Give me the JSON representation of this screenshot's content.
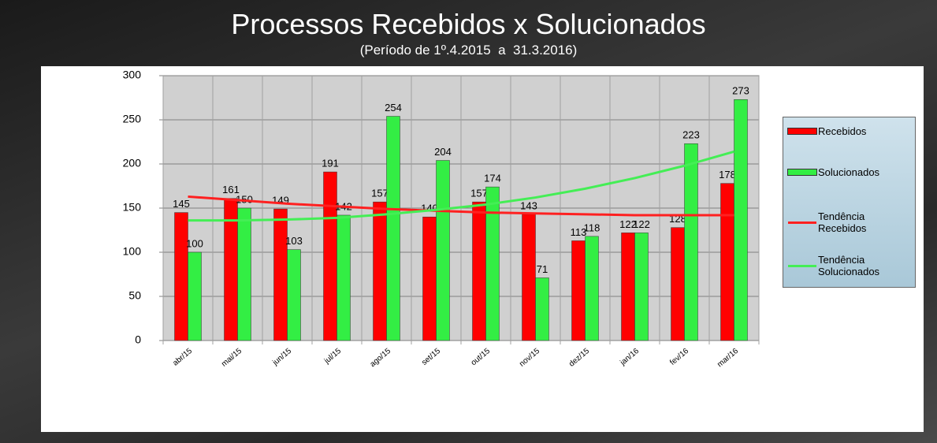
{
  "chart_data": {
    "type": "bar",
    "title": "Processos Recebidos x Solucionados",
    "subtitle": "(Período de 1º.4.2015  a  31.3.2016)",
    "categories": [
      "abr/15",
      "mai/15",
      "jun/15",
      "jul/15",
      "ago/15",
      "set/15",
      "out/15",
      "nov/15",
      "dez/15",
      "jan/16",
      "fev/16",
      "mar/16"
    ],
    "series": [
      {
        "name": "Recebidos",
        "color": "#ff0000",
        "type": "bar",
        "values": [
          145,
          161,
          149,
          191,
          157,
          140,
          157,
          143,
          113,
          122,
          128,
          178
        ]
      },
      {
        "name": "Solucionados",
        "color": "#33ee44",
        "type": "bar",
        "values": [
          100,
          150,
          103,
          142,
          254,
          204,
          174,
          71,
          118,
          122,
          223,
          273
        ]
      },
      {
        "name": "Tendência Recebidos",
        "color": "#ff2020",
        "type": "line",
        "values": [
          163,
          159,
          155,
          152,
          149,
          147,
          145,
          144,
          143,
          142,
          142,
          142
        ]
      },
      {
        "name": "Tendência Solucionados",
        "color": "#44ee55",
        "type": "line",
        "values": [
          136,
          136,
          137,
          139,
          143,
          148,
          154,
          162,
          172,
          184,
          198,
          214
        ]
      }
    ],
    "ylim": [
      0,
      300
    ],
    "yticks": [
      0,
      50,
      100,
      150,
      200,
      250,
      300
    ],
    "grid": true,
    "legend": "right"
  }
}
